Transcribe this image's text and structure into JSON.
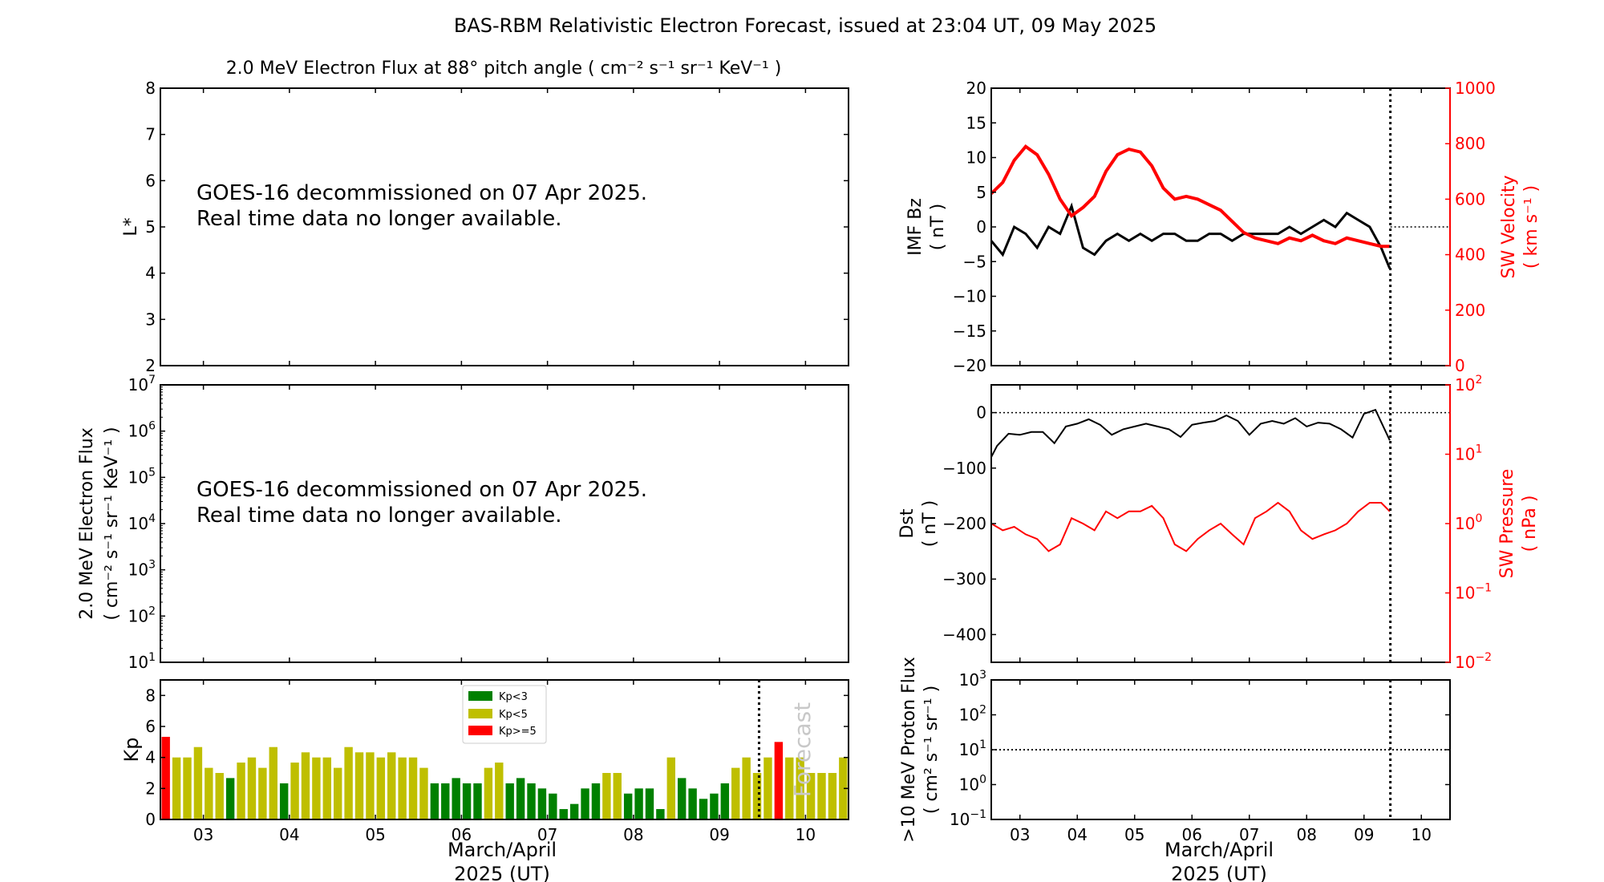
{
  "figure": {
    "title": "BAS-RBM Relativistic Electron Forecast, issued at 23:04 UT, 09 May 2025",
    "colors": {
      "kp_low": "#008000",
      "kp_mid": "#bfbf00",
      "kp_high": "#ff0000",
      "sw": "#ff0000",
      "axis": "#000000",
      "forecast_text": "#c8c8c8"
    }
  },
  "chart_data": [
    {
      "id": "lstar",
      "type": "heatmap",
      "title": "2.0 MeV Electron Flux at 88° pitch angle ( cm⁻² s⁻¹ sr⁻¹ KeV⁻¹ )",
      "ylabel": "L*",
      "ylim": [
        2,
        8
      ],
      "yticks": [
        "2",
        "3",
        "4",
        "5",
        "6",
        "7",
        "8"
      ],
      "message": [
        "GOES-16 decommissioned on 07 Apr 2025.",
        "Real time data no longer available."
      ],
      "values": []
    },
    {
      "id": "eflux",
      "type": "line",
      "ylabel": "2.0 MeV Electron Flux",
      "ylabel2": "( cm⁻² s⁻¹ sr⁻¹ KeV⁻¹ )",
      "yscale": "log",
      "ylim": [
        10,
        10000000
      ],
      "yticks": [
        {
          "base": "10",
          "exp": "1"
        },
        {
          "base": "10",
          "exp": "2"
        },
        {
          "base": "10",
          "exp": "3"
        },
        {
          "base": "10",
          "exp": "4"
        },
        {
          "base": "10",
          "exp": "5"
        },
        {
          "base": "10",
          "exp": "6"
        },
        {
          "base": "10",
          "exp": "7"
        }
      ],
      "message": [
        "GOES-16 decommissioned on 07 Apr 2025.",
        "Real time data no longer available."
      ],
      "values": []
    },
    {
      "id": "kp",
      "type": "bar",
      "ylabel": "Kp",
      "ylim": [
        0,
        9
      ],
      "yticks": [
        "0",
        "2",
        "4",
        "6",
        "8"
      ],
      "xlim_days": [
        2.5,
        10.5
      ],
      "xticks": [
        "03",
        "04",
        "05",
        "06",
        "07",
        "08",
        "09",
        "10"
      ],
      "xlabel": [
        "March/April",
        "2025 (UT)"
      ],
      "now_day": 9.46,
      "forecast_label": "Forecast",
      "legend": {
        "position": "top-center",
        "entries": [
          "Kp<3",
          "Kp<5",
          "Kp>=5"
        ]
      },
      "bin_hours": 3,
      "start_day": 2.5,
      "values": [
        5.33,
        4,
        4,
        4.67,
        3.33,
        3,
        2.67,
        3.67,
        4,
        3.33,
        4.67,
        2.33,
        3.67,
        4.33,
        4,
        4,
        3.33,
        4.67,
        4.33,
        4.33,
        4,
        4.33,
        4,
        4,
        3.33,
        2.33,
        2.33,
        2.67,
        2.33,
        2.33,
        3.33,
        3.67,
        2.33,
        2.67,
        2.33,
        2,
        1.67,
        0.67,
        1,
        2,
        2.33,
        3,
        3,
        1.67,
        2,
        2,
        0.67,
        4,
        2.67,
        2,
        1.33,
        1.67,
        2.33,
        3.33,
        4,
        3,
        4,
        5,
        4,
        4,
        3,
        3,
        3,
        4
      ]
    },
    {
      "id": "imf",
      "type": "line",
      "ylabel": "IMF Bz",
      "ylabel_unit": "( nT )",
      "ylim": [
        -20,
        20
      ],
      "yticks": [
        "−20",
        "−15",
        "−10",
        "−5",
        "0",
        "5",
        "10",
        "15",
        "20"
      ],
      "y2label": "SW Velocity",
      "y2label_unit": "( km s⁻¹ )",
      "y2lim": [
        0,
        1000
      ],
      "y2ticks": [
        "0",
        "200",
        "400",
        "600",
        "800",
        "1000"
      ],
      "reference_line_y2": 500,
      "now_day": 9.46,
      "series": [
        {
          "name": "IMF Bz (nT)",
          "axis": "left",
          "color": "#000000",
          "x": [
            2.5,
            2.7,
            2.9,
            3.1,
            3.3,
            3.5,
            3.7,
            3.9,
            4.1,
            4.3,
            4.5,
            4.7,
            4.9,
            5.1,
            5.3,
            5.5,
            5.7,
            5.9,
            6.1,
            6.3,
            6.5,
            6.7,
            6.9,
            7.1,
            7.3,
            7.5,
            7.7,
            7.9,
            8.1,
            8.3,
            8.5,
            8.7,
            8.9,
            9.1,
            9.3,
            9.45
          ],
          "y": [
            -2,
            -4,
            0,
            -1,
            -3,
            0,
            -1,
            3,
            -3,
            -4,
            -2,
            -1,
            -2,
            -1,
            -2,
            -1,
            -1,
            -2,
            -2,
            -1,
            -1,
            -2,
            -1,
            -1,
            -1,
            -1,
            0,
            -1,
            0,
            1,
            0,
            2,
            1,
            0,
            -3,
            -6
          ]
        },
        {
          "name": "SW Velocity (km/s)",
          "axis": "right",
          "color": "#ff0000",
          "x": [
            2.5,
            2.7,
            2.9,
            3.1,
            3.3,
            3.5,
            3.7,
            3.9,
            4.1,
            4.3,
            4.5,
            4.7,
            4.9,
            5.1,
            5.3,
            5.5,
            5.7,
            5.9,
            6.1,
            6.3,
            6.5,
            6.7,
            6.9,
            7.1,
            7.3,
            7.5,
            7.7,
            7.9,
            8.1,
            8.3,
            8.5,
            8.7,
            8.9,
            9.1,
            9.3,
            9.45
          ],
          "y": [
            620,
            660,
            740,
            790,
            760,
            690,
            600,
            540,
            570,
            610,
            700,
            760,
            780,
            770,
            720,
            640,
            600,
            610,
            600,
            580,
            560,
            520,
            480,
            460,
            450,
            440,
            460,
            450,
            470,
            450,
            440,
            460,
            450,
            440,
            430,
            430
          ]
        }
      ]
    },
    {
      "id": "dst",
      "type": "line",
      "ylabel": "Dst",
      "ylabel_unit": "( nT )",
      "ylim": [
        -450,
        50
      ],
      "yticks": [
        "−400",
        "−300",
        "−200",
        "−100",
        "0"
      ],
      "y2label": "SW Pressure",
      "y2label_unit": "( nPa )",
      "y2scale": "log",
      "y2lim": [
        0.01,
        100
      ],
      "y2ticks": [
        {
          "base": "10",
          "exp": "−2"
        },
        {
          "base": "10",
          "exp": "−1"
        },
        {
          "base": "10",
          "exp": "0"
        },
        {
          "base": "10",
          "exp": "1"
        },
        {
          "base": "10",
          "exp": "2"
        }
      ],
      "reference_line_y": 0,
      "now_day": 9.46,
      "series": [
        {
          "name": "Dst (nT)",
          "axis": "left",
          "color": "#000000",
          "x": [
            2.5,
            2.6,
            2.8,
            3.0,
            3.2,
            3.4,
            3.6,
            3.8,
            4.0,
            4.2,
            4.4,
            4.6,
            4.8,
            5.0,
            5.2,
            5.4,
            5.6,
            5.8,
            6.0,
            6.2,
            6.4,
            6.6,
            6.8,
            7.0,
            7.2,
            7.4,
            7.6,
            7.8,
            8.0,
            8.2,
            8.4,
            8.6,
            8.8,
            9.0,
            9.2,
            9.45
          ],
          "y": [
            -80,
            -60,
            -38,
            -40,
            -35,
            -35,
            -55,
            -25,
            -20,
            -12,
            -22,
            -40,
            -30,
            -25,
            -20,
            -25,
            -30,
            -44,
            -22,
            -18,
            -15,
            -5,
            -15,
            -40,
            -20,
            -15,
            -20,
            -10,
            -25,
            -18,
            -20,
            -30,
            -45,
            -2,
            5,
            -50
          ]
        },
        {
          "name": "SW Pressure (nPa)",
          "axis": "right",
          "color": "#ff0000",
          "x": [
            2.5,
            2.7,
            2.9,
            3.1,
            3.3,
            3.5,
            3.7,
            3.9,
            4.1,
            4.3,
            4.5,
            4.7,
            4.9,
            5.1,
            5.3,
            5.5,
            5.7,
            5.9,
            6.1,
            6.3,
            6.5,
            6.7,
            6.9,
            7.1,
            7.3,
            7.5,
            7.7,
            7.9,
            8.1,
            8.3,
            8.5,
            8.7,
            8.9,
            9.1,
            9.3,
            9.45
          ],
          "y": [
            1.0,
            0.8,
            0.9,
            0.7,
            0.6,
            0.4,
            0.5,
            1.2,
            1.0,
            0.8,
            1.5,
            1.2,
            1.5,
            1.5,
            1.8,
            1.2,
            0.5,
            0.4,
            0.6,
            0.8,
            1.0,
            0.7,
            0.5,
            1.2,
            1.5,
            2.0,
            1.5,
            0.8,
            0.6,
            0.7,
            0.8,
            1.0,
            1.5,
            2.0,
            2.0,
            1.5
          ]
        }
      ]
    },
    {
      "id": "proton",
      "type": "line",
      "ylabel": ">10 MeV Proton Flux",
      "ylabel_unit": "( cm² s⁻¹ sr⁻¹ )",
      "yscale": "log",
      "ylim": [
        0.1,
        1000
      ],
      "yticks": [
        {
          "base": "10",
          "exp": "−1"
        },
        {
          "base": "10",
          "exp": "0"
        },
        {
          "base": "10",
          "exp": "1"
        },
        {
          "base": "10",
          "exp": "2"
        },
        {
          "base": "10",
          "exp": "3"
        }
      ],
      "reference_line_y": 10,
      "xlim_days": [
        2.5,
        10.5
      ],
      "xticks": [
        "03",
        "04",
        "05",
        "06",
        "07",
        "08",
        "09",
        "10"
      ],
      "xlabel": [
        "March/April",
        "2025 (UT)"
      ],
      "now_day": 9.46,
      "values": []
    }
  ]
}
